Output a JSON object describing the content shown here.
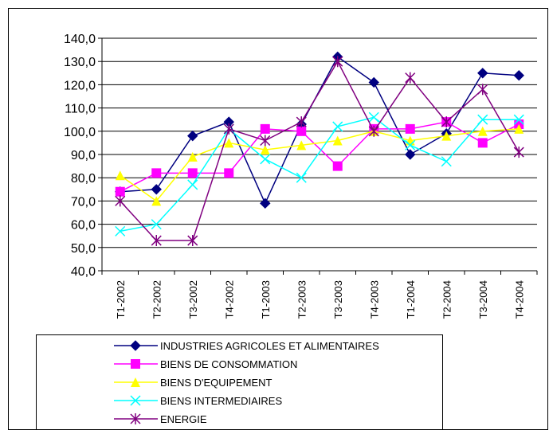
{
  "chart_data": {
    "type": "line",
    "categories": [
      "T1-2002",
      "T2-2002",
      "T3-2002",
      "T4-2002",
      "T1-2003",
      "T2-2003",
      "T3-2003",
      "T4-2003",
      "T1-2004",
      "T2-2004",
      "T3-2004",
      "T4-2004"
    ],
    "series": [
      {
        "name": "INDUSTRIES AGRICOLES ET ALIMENTAIRES",
        "color": "#000080",
        "marker": "diamond",
        "values": [
          74,
          75,
          98,
          104,
          69,
          103,
          132,
          121,
          90,
          99,
          125,
          124
        ]
      },
      {
        "name": "BIENS DE CONSOMMATION",
        "color": "#ff00ff",
        "marker": "square",
        "values": [
          74,
          82,
          82,
          82,
          101,
          100,
          85,
          101,
          101,
          104,
          95,
          103
        ]
      },
      {
        "name": "BIENS D'EQUIPEMENT",
        "color": "#ffff00",
        "marker": "triangle",
        "values": [
          81,
          70,
          89,
          95,
          92,
          94,
          96,
          100,
          96,
          98,
          100,
          101
        ]
      },
      {
        "name": "BIENS INTERMEDIAIRES",
        "color": "#00ffff",
        "marker": "x",
        "values": [
          57,
          60,
          77,
          101,
          88,
          80,
          102,
          106,
          94,
          87,
          105,
          105
        ]
      },
      {
        "name": "ENERGIE",
        "color": "#800080",
        "marker": "asterisk",
        "values": [
          70,
          53,
          53,
          101,
          96,
          104,
          130,
          100,
          123,
          104,
          118,
          91
        ]
      }
    ],
    "ylim": [
      40,
      140
    ],
    "yticks": [
      {
        "value": 40,
        "label": "40,0"
      },
      {
        "value": 50,
        "label": "50,0"
      },
      {
        "value": 60,
        "label": "60,0"
      },
      {
        "value": 70,
        "label": "70,0"
      },
      {
        "value": 80,
        "label": "80,0"
      },
      {
        "value": 90,
        "label": "90,0"
      },
      {
        "value": 100,
        "label": "100,0"
      },
      {
        "value": 110,
        "label": "110,0"
      },
      {
        "value": 120,
        "label": "120,0"
      },
      {
        "value": 130,
        "label": "130,0"
      },
      {
        "value": 140,
        "label": "140,0"
      }
    ],
    "grid": true,
    "legend": "bottom"
  }
}
